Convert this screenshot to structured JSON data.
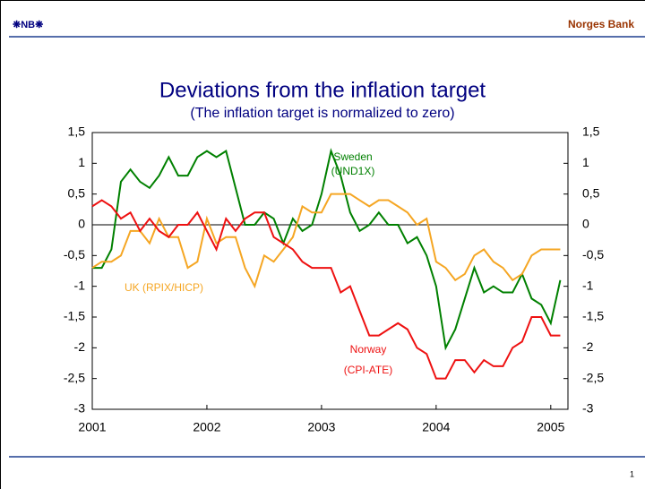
{
  "header": {
    "logo": "❋NB❋",
    "brand": "Norges Bank"
  },
  "page_number": "1",
  "chart_data": {
    "type": "line",
    "title": "Deviations from the inflation target",
    "subtitle": "(The inflation target is normalized to zero)",
    "x": [
      2001,
      2001.083,
      2001.167,
      2001.25,
      2001.333,
      2001.417,
      2001.5,
      2001.583,
      2001.667,
      2001.75,
      2001.833,
      2001.917,
      2002,
      2002.083,
      2002.167,
      2002.25,
      2002.333,
      2002.417,
      2002.5,
      2002.583,
      2002.667,
      2002.75,
      2002.833,
      2002.917,
      2003,
      2003.083,
      2003.167,
      2003.25,
      2003.333,
      2003.417,
      2003.5,
      2003.583,
      2003.667,
      2003.75,
      2003.833,
      2003.917,
      2004,
      2004.083,
      2004.167,
      2004.25,
      2004.333,
      2004.417,
      2004.5,
      2004.583,
      2004.667,
      2004.75,
      2004.833,
      2004.917,
      2005,
      2005.083
    ],
    "xlim": [
      2001,
      2005.15
    ],
    "xticks": [
      2001,
      2002,
      2003,
      2004,
      2005
    ],
    "ylim": [
      -3,
      1.5
    ],
    "yticks": [
      {
        "value": -3,
        "label": "-3"
      },
      {
        "value": -2.5,
        "label": "-2,5"
      },
      {
        "value": -2,
        "label": "-2"
      },
      {
        "value": -1.5,
        "label": "-1,5"
      },
      {
        "value": -1,
        "label": "-1"
      },
      {
        "value": -0.5,
        "label": "-0,5"
      },
      {
        "value": 0,
        "label": "0"
      },
      {
        "value": 0.5,
        "label": "0,5"
      },
      {
        "value": 1,
        "label": "1"
      },
      {
        "value": 1.5,
        "label": "1,5"
      }
    ],
    "y2lim": [
      -3,
      1.5
    ],
    "y2ticks": [
      {
        "value": -3,
        "label": "-3"
      },
      {
        "value": -2.5,
        "label": "-2,5"
      },
      {
        "value": -2,
        "label": "-2"
      },
      {
        "value": -1.5,
        "label": "-1,5"
      },
      {
        "value": -1,
        "label": "-1"
      },
      {
        "value": -0.5,
        "label": "-0,5"
      },
      {
        "value": 0,
        "label": "0"
      },
      {
        "value": 0.5,
        "label": "0,5"
      },
      {
        "value": 1,
        "label": "1"
      },
      {
        "value": 1.5,
        "label": "1,5"
      }
    ],
    "series": [
      {
        "name": "Sweden",
        "note": "(UND1X)",
        "color": "#008000",
        "values": [
          -0.7,
          -0.7,
          -0.4,
          0.7,
          0.9,
          0.7,
          0.6,
          0.8,
          1.1,
          0.8,
          0.8,
          1.1,
          1.2,
          1.1,
          1.2,
          0.6,
          0.0,
          0.0,
          0.2,
          0.1,
          -0.3,
          0.1,
          -0.1,
          0.0,
          0.5,
          1.2,
          0.8,
          0.2,
          -0.1,
          0.0,
          0.2,
          0.0,
          0.0,
          -0.3,
          -0.2,
          -0.5,
          -1.0,
          -2.0,
          -1.7,
          -1.2,
          -0.7,
          -1.1,
          -1.0,
          -1.1,
          -1.1,
          -0.8,
          -1.2,
          -1.3,
          -1.6,
          -0.9
        ]
      },
      {
        "name": "UK (RPIX/HICP)",
        "color": "#f5a623",
        "values": [
          -0.7,
          -0.6,
          -0.6,
          -0.5,
          -0.1,
          -0.1,
          -0.3,
          0.1,
          -0.2,
          -0.2,
          -0.7,
          -0.6,
          0.1,
          -0.3,
          -0.2,
          -0.2,
          -0.7,
          -1.0,
          -0.5,
          -0.6,
          -0.4,
          -0.2,
          0.3,
          0.2,
          0.2,
          0.5,
          0.5,
          0.5,
          0.4,
          0.3,
          0.4,
          0.4,
          0.3,
          0.2,
          0.0,
          0.1,
          -0.6,
          -0.7,
          -0.9,
          -0.8,
          -0.5,
          -0.4,
          -0.6,
          -0.7,
          -0.9,
          -0.8,
          -0.5,
          -0.4,
          -0.4,
          -0.4
        ]
      },
      {
        "name": "Norway",
        "note": "(CPI-ATE)",
        "color": "#ee1111",
        "values": [
          0.3,
          0.4,
          0.3,
          0.1,
          0.2,
          -0.1,
          0.1,
          -0.1,
          -0.2,
          0.0,
          0.0,
          0.2,
          -0.1,
          -0.4,
          0.1,
          -0.1,
          0.1,
          0.2,
          0.2,
          -0.2,
          -0.3,
          -0.4,
          -0.6,
          -0.7,
          -0.7,
          -0.7,
          -1.1,
          -1.0,
          -1.4,
          -1.8,
          -1.8,
          -1.7,
          -1.6,
          -1.7,
          -2.0,
          -2.1,
          -2.5,
          -2.5,
          -2.2,
          -2.2,
          -2.4,
          -2.2,
          -2.3,
          -2.3,
          -2.0,
          -1.9,
          -1.5,
          -1.5,
          -1.8,
          -1.8
        ]
      }
    ]
  }
}
